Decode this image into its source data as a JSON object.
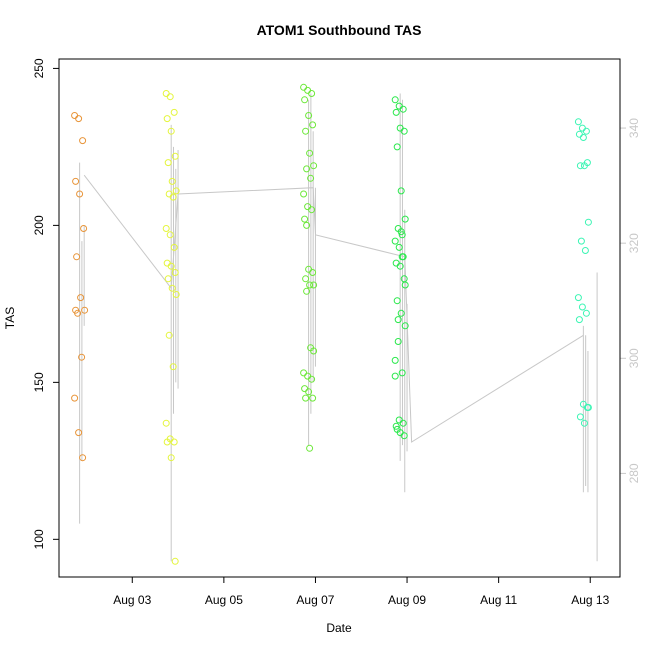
{
  "chart_data": {
    "type": "scatter",
    "title": "ATOM1 Southbound TAS",
    "xlabel": "Date",
    "ylabel": "TAS",
    "x_ticks": [
      "Aug 03",
      "Aug 05",
      "Aug 07",
      "Aug 09",
      "Aug 11",
      "Aug 13"
    ],
    "x_tick_days": [
      3,
      5,
      7,
      9,
      11,
      13
    ],
    "xlim_days": [
      1.4,
      13.65
    ],
    "ylim": [
      88,
      253
    ],
    "y_ticks": [
      100,
      150,
      200,
      250
    ],
    "secondary_axis": {
      "ylim": [
        262,
        352
      ],
      "ticks": [
        280,
        300,
        320,
        340
      ],
      "color": "#c8c8c8"
    },
    "line_color": "#c8c8c8",
    "series": [
      {
        "color": "#e8953a",
        "x": [
          1.85,
          1.85,
          1.85,
          1.85,
          1.85,
          1.85,
          1.85,
          1.85,
          1.85,
          1.85,
          1.85,
          1.85,
          1.85,
          1.85,
          1.85
        ],
        "y": [
          235,
          234,
          227,
          214,
          210,
          199,
          190,
          177,
          173,
          172,
          158,
          145,
          134,
          126,
          173
        ]
      },
      {
        "color": "#e4f53c",
        "x": [
          3.85,
          3.85,
          3.85,
          3.85,
          3.85,
          3.85,
          3.85,
          3.85,
          3.85,
          3.85,
          3.85,
          3.85,
          3.85,
          3.85,
          3.85,
          3.85,
          3.85,
          3.85,
          3.85,
          3.85,
          3.85,
          3.85,
          3.85,
          3.85,
          3.85,
          3.85,
          3.85,
          3.85
        ],
        "y": [
          242,
          241,
          236,
          234,
          230,
          222,
          220,
          214,
          211,
          210,
          209,
          199,
          197,
          193,
          188,
          187,
          185,
          183,
          180,
          178,
          165,
          155,
          137,
          132,
          131,
          131,
          126,
          93
        ]
      },
      {
        "color": "#6de83a",
        "x": [
          6.85,
          6.85,
          6.85,
          6.85,
          6.85,
          6.85,
          6.85,
          6.85,
          6.85,
          6.85,
          6.85,
          6.85,
          6.85,
          6.85,
          6.85,
          6.85,
          6.85,
          6.85,
          6.85,
          6.85,
          6.85,
          6.85,
          6.85,
          6.85,
          6.85,
          6.85,
          6.85,
          6.85,
          6.85,
          6.85,
          6.85,
          6.85
        ],
        "y": [
          244,
          243,
          242,
          240,
          235,
          232,
          230,
          223,
          219,
          218,
          215,
          210,
          206,
          205,
          202,
          186,
          185,
          183,
          181,
          181,
          179,
          161,
          153,
          152,
          151,
          148,
          147,
          145,
          145,
          129,
          160,
          200
        ]
      },
      {
        "color": "#28e84a",
        "x": [
          8.85,
          8.85,
          8.85,
          8.85,
          8.85,
          8.85,
          8.85,
          8.85,
          8.85,
          8.85,
          8.85,
          8.85,
          8.85,
          8.85,
          8.85,
          8.85,
          8.85,
          8.85,
          8.85,
          8.85,
          8.85,
          8.85,
          8.85,
          8.85,
          8.85,
          8.85,
          8.85,
          8.85,
          8.85,
          8.85,
          8.85,
          8.85,
          8.85,
          8.85
        ],
        "y": [
          240,
          238,
          237,
          236,
          231,
          230,
          225,
          211,
          202,
          199,
          197,
          195,
          193,
          190,
          188,
          187,
          183,
          176,
          172,
          168,
          163,
          153,
          152,
          138,
          137,
          136,
          134,
          133,
          135,
          198,
          181,
          170,
          190,
          157
        ]
      },
      {
        "color": "#3cf5b4",
        "x": [
          12.85,
          12.85,
          12.85,
          12.85,
          12.85,
          12.85,
          12.85,
          12.85,
          12.85,
          12.85,
          12.85,
          12.85,
          12.85,
          12.85,
          12.85,
          12.85,
          12.85,
          12.85,
          12.85,
          12.85
        ],
        "y": [
          233,
          231,
          230,
          229,
          228,
          220,
          219,
          219,
          201,
          195,
          192,
          177,
          174,
          172,
          170,
          143,
          142,
          139,
          137,
          142
        ]
      }
    ],
    "bg_segments": [
      {
        "x": 1.85,
        "y": [
          105,
          220
        ]
      },
      {
        "x": 1.9,
        "y": [
          125,
          195
        ]
      },
      {
        "x": 1.95,
        "y": [
          168,
          200
        ]
      },
      {
        "x": 3.85,
        "y": [
          93,
          232
        ]
      },
      {
        "x": 3.9,
        "y": [
          140,
          225
        ]
      },
      {
        "x": 3.95,
        "y": [
          150,
          218
        ]
      },
      {
        "x": 4.0,
        "y": [
          148,
          224
        ]
      },
      {
        "x": 6.85,
        "y": [
          130,
          240
        ]
      },
      {
        "x": 6.9,
        "y": [
          140,
          242
        ]
      },
      {
        "x": 6.95,
        "y": [
          150,
          230
        ]
      },
      {
        "x": 7.0,
        "y": [
          155,
          212
        ]
      },
      {
        "x": 8.85,
        "y": [
          125,
          242
        ]
      },
      {
        "x": 8.9,
        "y": [
          130,
          240
        ]
      },
      {
        "x": 8.95,
        "y": [
          115,
          205
        ]
      },
      {
        "x": 9.0,
        "y": [
          128,
          175
        ]
      },
      {
        "x": 12.85,
        "y": [
          115,
          168
        ]
      },
      {
        "x": 12.9,
        "y": [
          117,
          165
        ]
      },
      {
        "x": 12.95,
        "y": [
          115,
          160
        ]
      },
      {
        "x": 13.15,
        "y": [
          93,
          185
        ]
      }
    ],
    "bg_path": {
      "x": [
        1.95,
        3.85,
        4.0,
        6.95,
        7.0,
        8.95,
        9.1,
        12.85
      ],
      "y": [
        216,
        180,
        210,
        212,
        197,
        190,
        131,
        165
      ]
    }
  }
}
